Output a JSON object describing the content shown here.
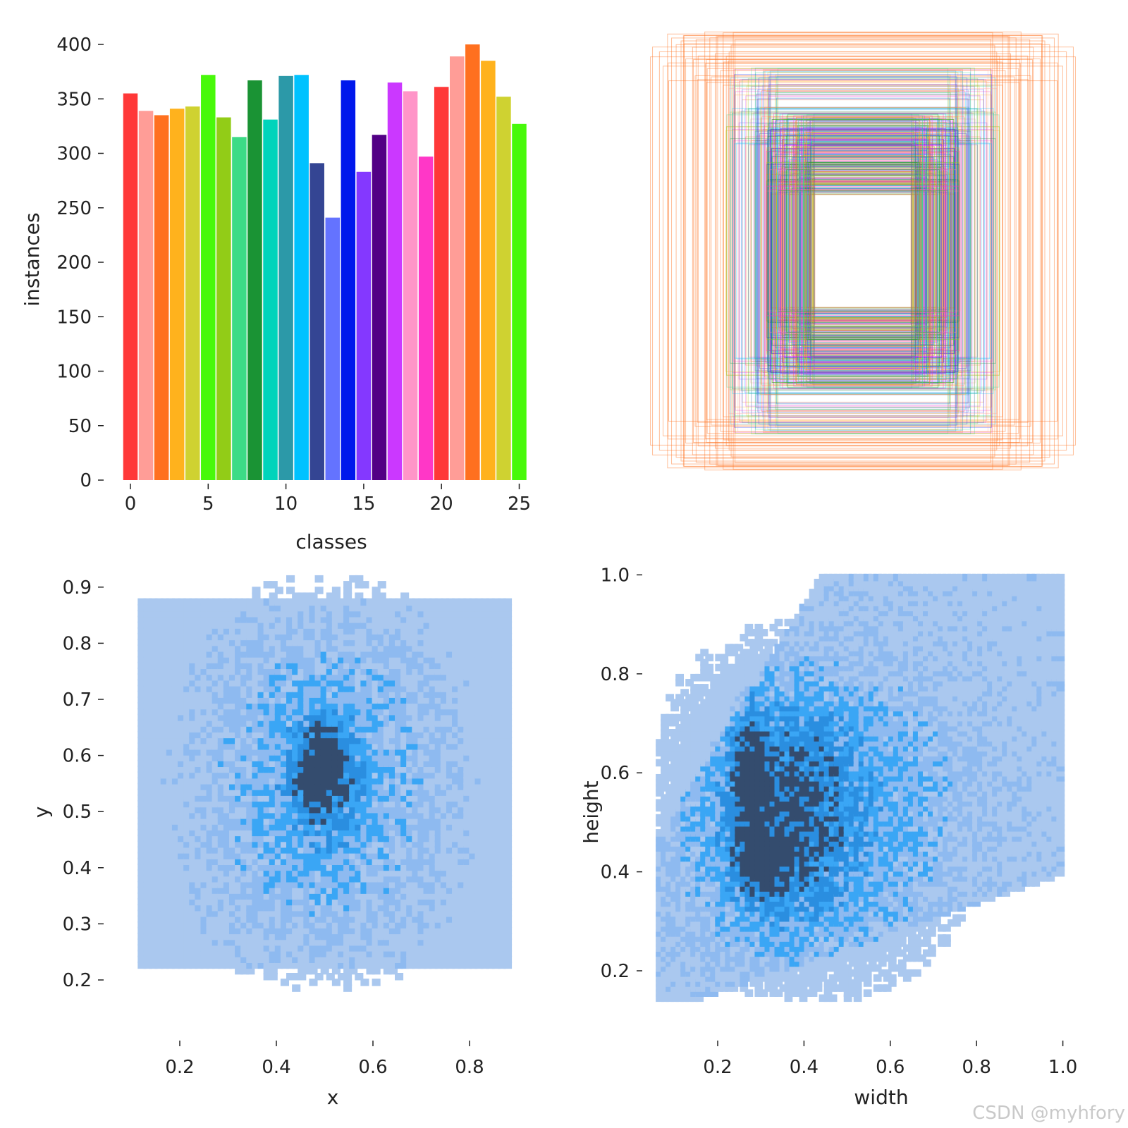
{
  "chart_data": [
    {
      "id": "class-histogram",
      "type": "bar",
      "title": "",
      "xlabel": "classes",
      "ylabel": "instances",
      "categories": [
        0,
        1,
        2,
        3,
        4,
        5,
        6,
        7,
        8,
        9,
        10,
        11,
        12,
        13,
        14,
        15,
        16,
        17,
        18,
        19,
        20,
        21,
        22,
        23,
        24,
        25
      ],
      "values": [
        355,
        339,
        335,
        341,
        343,
        372,
        333,
        315,
        367,
        331,
        371,
        372,
        291,
        241,
        367,
        283,
        317,
        365,
        357,
        297,
        361,
        389,
        400,
        385,
        352,
        327
      ],
      "bar_colors": [
        "#ff3838",
        "#ff9d97",
        "#ff701f",
        "#ffb21d",
        "#cfd231",
        "#48f90a",
        "#92cc17",
        "#3ddb86",
        "#1a9334",
        "#00d4bb",
        "#2c99a8",
        "#00c2ff",
        "#344593",
        "#6473ff",
        "#0018ec",
        "#8438ff",
        "#520085",
        "#cb38ff",
        "#ff95c8",
        "#ff37c7",
        "#ff3838",
        "#ff9d97",
        "#ff701f",
        "#ffb21d",
        "#cfd231",
        "#48f90a"
      ],
      "xticks": [
        "0",
        "5",
        "10",
        "15",
        "20",
        "25"
      ],
      "yticks": [
        "0",
        "50",
        "100",
        "150",
        "200",
        "250",
        "300",
        "350",
        "400"
      ],
      "ylim": [
        0,
        400
      ]
    },
    {
      "id": "box-overlay",
      "type": "other",
      "description_kind": "overlaid bounding boxes of all labels centered",
      "colors": [
        "#ff701f",
        "#ff9d97",
        "#3ddb86",
        "#00c2ff",
        "#8438ff",
        "#cb38ff",
        "#ffb21d",
        "#1a9334",
        "#ff37c7",
        "#0018ec",
        "#2c99a8",
        "#92cc17"
      ]
    },
    {
      "id": "xy-histogram",
      "type": "heatmap",
      "xlabel": "x",
      "ylabel": "y",
      "xticks": [
        "0.2",
        "0.4",
        "0.6",
        "0.8"
      ],
      "yticks": [
        "0.2",
        "0.3",
        "0.4",
        "0.5",
        "0.6",
        "0.7",
        "0.8",
        "0.9"
      ],
      "xlim": [
        0.08,
        0.92
      ],
      "ylim": [
        0.16,
        0.92
      ],
      "density_peaks": [
        {
          "x": 0.5,
          "y": 0.59,
          "level": "high"
        },
        {
          "x": 0.5,
          "y": 0.555,
          "level": "high"
        },
        {
          "x": 0.5,
          "y": 0.6,
          "level": "medium"
        }
      ],
      "palette": [
        "#aac8ef",
        "#8ebaf0",
        "#3aa6f5",
        "#2a8ee0",
        "#344c6e"
      ]
    },
    {
      "id": "wh-histogram",
      "type": "heatmap",
      "xlabel": "width",
      "ylabel": "height",
      "xticks": [
        "0.2",
        "0.4",
        "0.6",
        "0.8",
        "1.0"
      ],
      "yticks": [
        "0.2",
        "0.4",
        "0.6",
        "0.8",
        "1.0"
      ],
      "xlim": [
        0.06,
        1.0
      ],
      "ylim": [
        0.14,
        1.0
      ],
      "density_peaks": [
        {
          "x": 0.3,
          "y": 0.42,
          "level": "high"
        },
        {
          "x": 0.29,
          "y": 0.6,
          "level": "high"
        },
        {
          "x": 0.36,
          "y": 0.52,
          "level": "medium"
        }
      ],
      "palette": [
        "#aac8ef",
        "#8ebaf0",
        "#3aa6f5",
        "#2a8ee0",
        "#344c6e"
      ]
    }
  ],
  "watermark": "CSDN @myhfory"
}
